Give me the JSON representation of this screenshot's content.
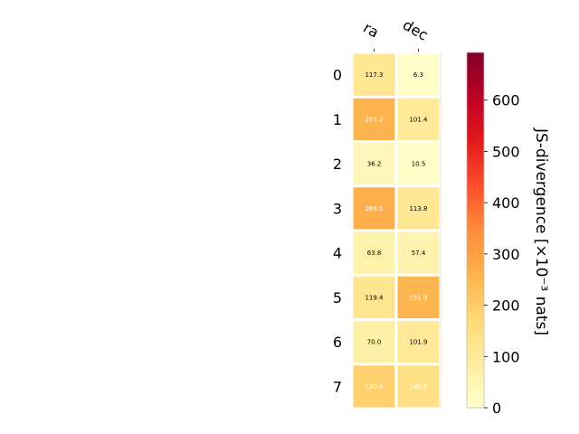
{
  "chart_data": {
    "type": "heatmap",
    "columns": [
      "ra",
      "dec"
    ],
    "rows": [
      "0",
      "1",
      "2",
      "3",
      "4",
      "5",
      "6",
      "7"
    ],
    "values": [
      [
        117.3,
        6.3
      ],
      [
        255.2,
        101.4
      ],
      [
        36.2,
        10.5
      ],
      [
        266.0,
        113.8
      ],
      [
        63.8,
        57.4
      ],
      [
        119.4,
        251.9
      ],
      [
        70.0,
        101.9
      ],
      [
        190.4,
        140.8
      ]
    ],
    "value_labels": [
      [
        "117.3",
        "6.3"
      ],
      [
        "255.2",
        "101.4"
      ],
      [
        "36.2",
        "10.5"
      ],
      [
        "266.0",
        "113.8"
      ],
      [
        "63.8",
        "57.4"
      ],
      [
        "119.4",
        "251.9"
      ],
      [
        "70.0",
        "101.9"
      ],
      [
        "190.4",
        "140.8"
      ]
    ],
    "colorbar": {
      "label": "JS-divergence [×10⁻³ nats]",
      "range": [
        0,
        693
      ],
      "ticks": [
        0,
        100,
        200,
        300,
        400,
        500,
        600
      ],
      "tick_labels": [
        "0",
        "100",
        "200",
        "300",
        "400",
        "500",
        "600"
      ],
      "colormap": "YlOrRd"
    },
    "grid": false,
    "legend": "colorbar-right"
  }
}
